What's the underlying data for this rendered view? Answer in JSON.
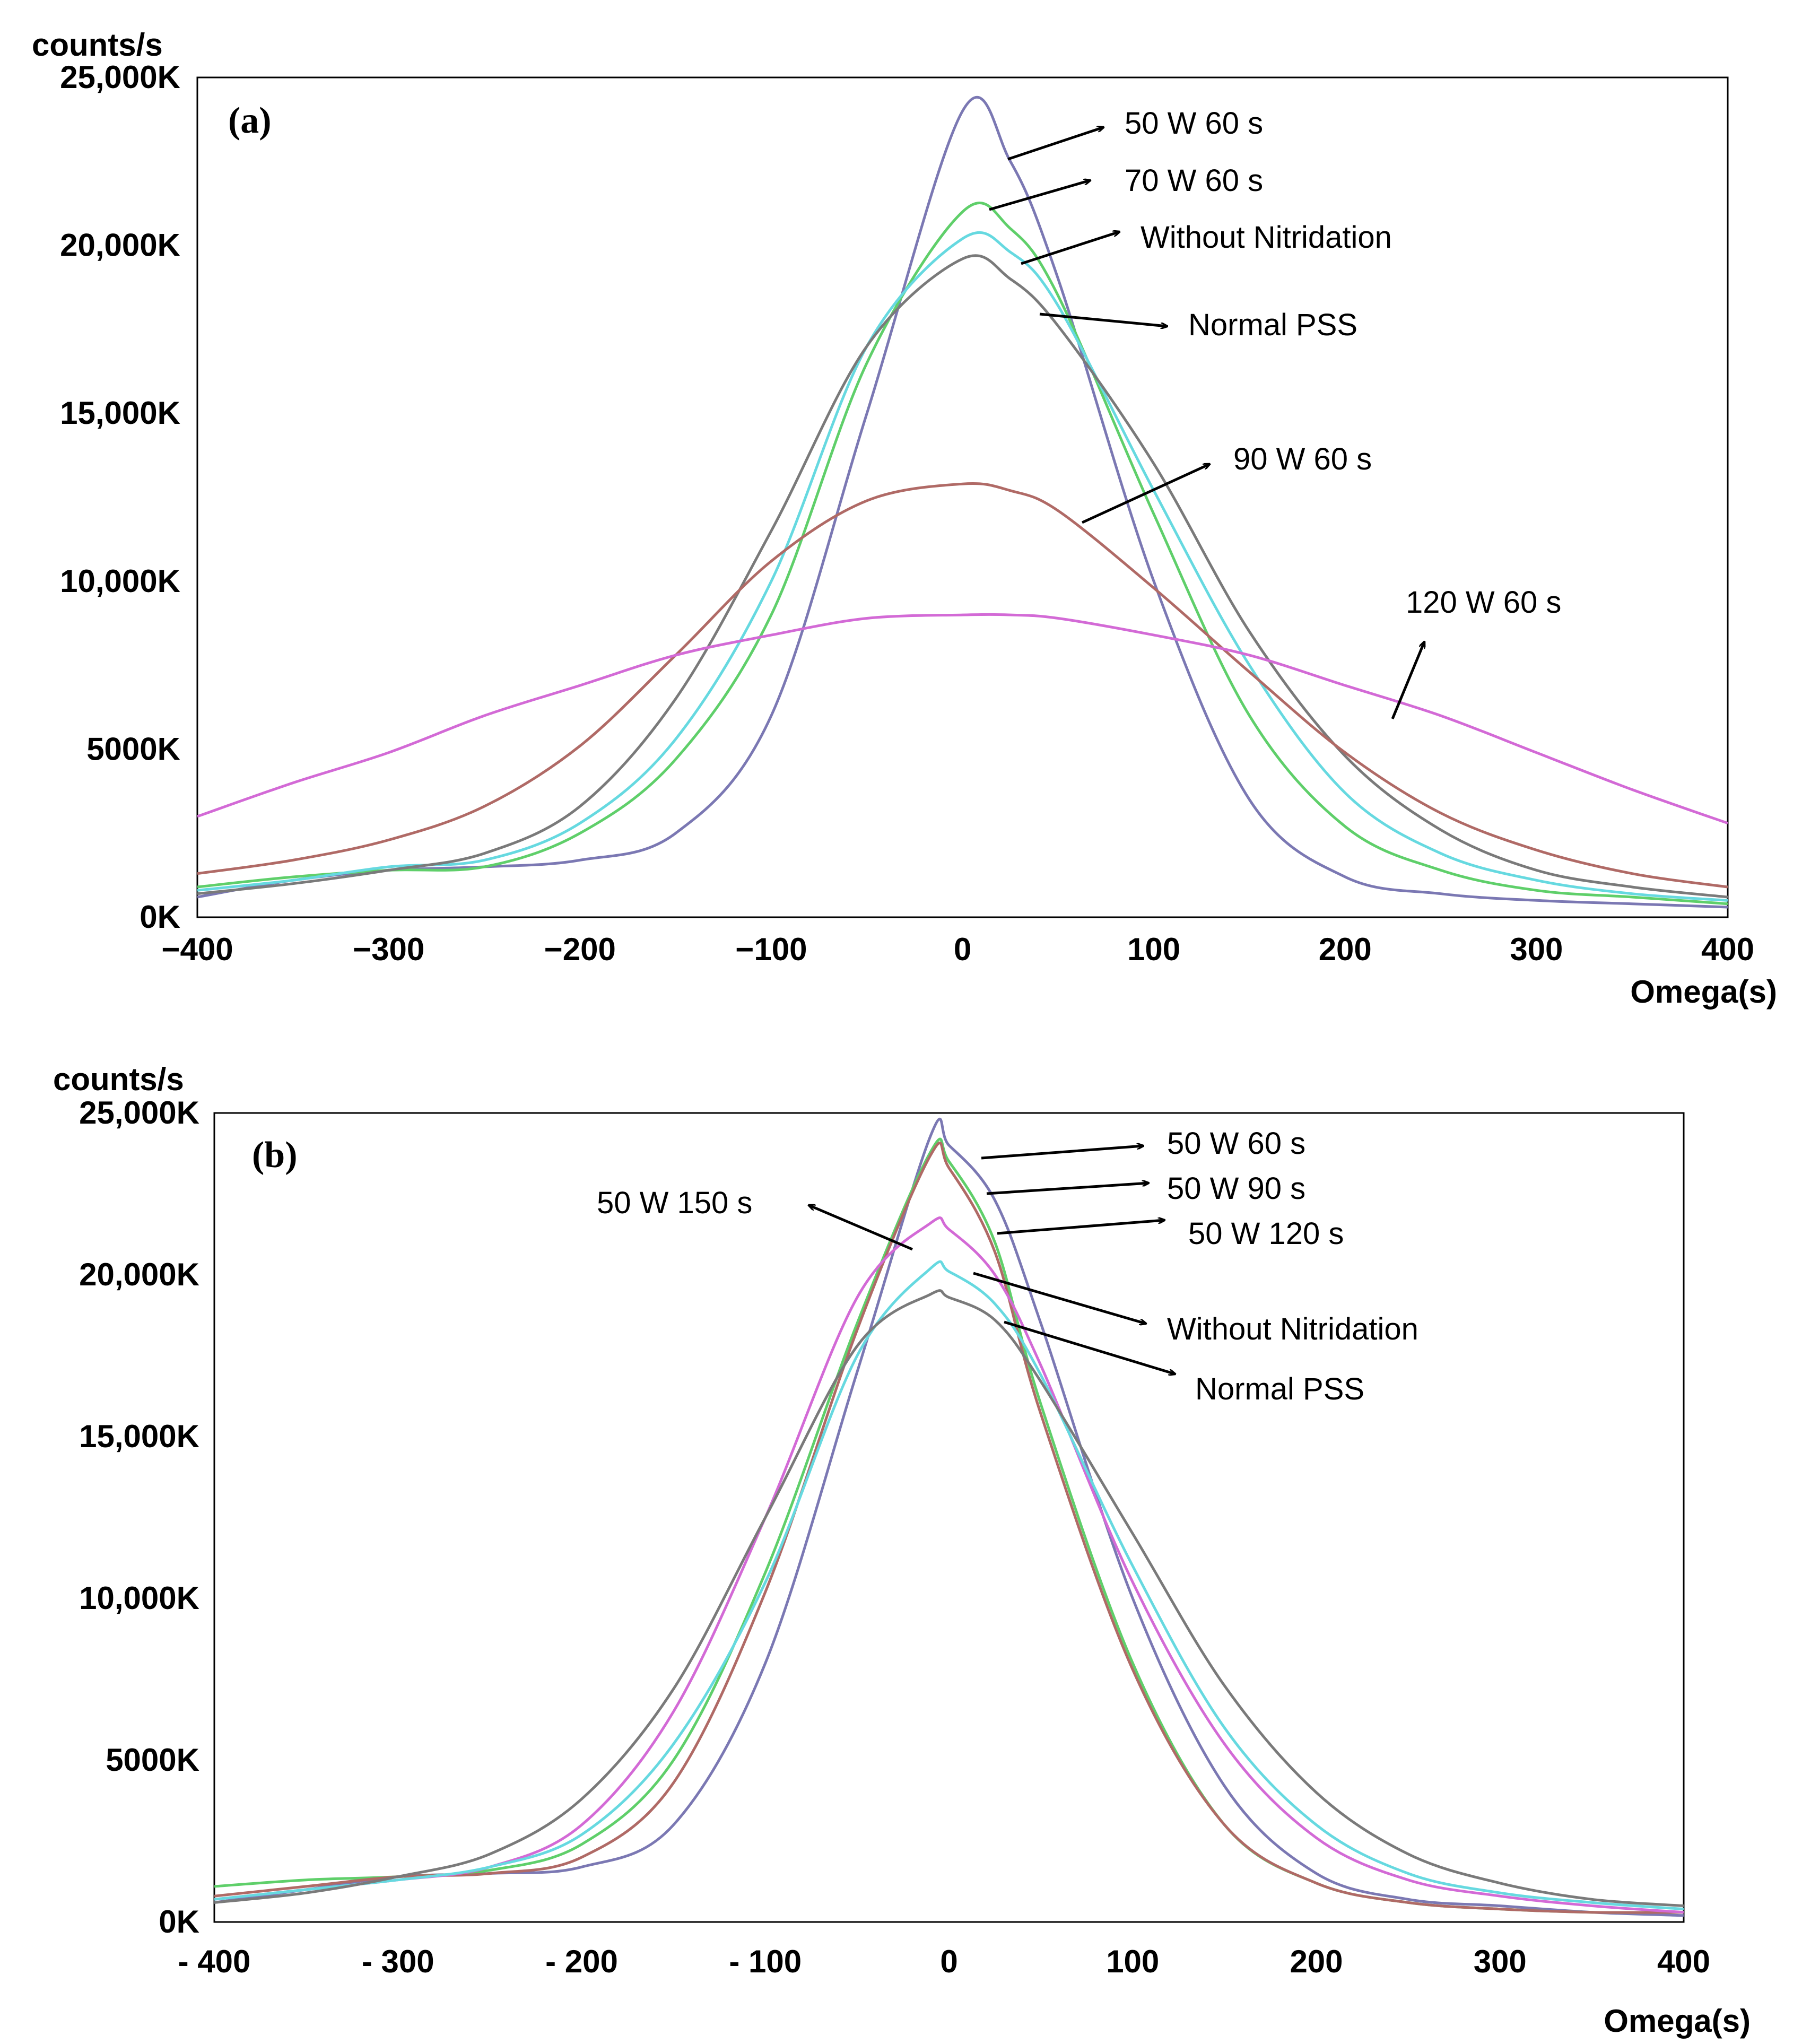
{
  "chart_data": [
    {
      "type": "line",
      "panel_label": "(a)",
      "ylabel": "counts/s",
      "xlabel": "Omega(s)",
      "xlim": [
        -400,
        400
      ],
      "ylim": [
        0,
        25000
      ],
      "x_ticks": [
        -400,
        -300,
        -200,
        -100,
        0,
        100,
        200,
        300,
        400
      ],
      "x_tick_labels": [
        "−400",
        "−300",
        "−200",
        "−100",
        "0",
        "100",
        "200",
        "300",
        "400"
      ],
      "y_ticks": [
        0,
        5000,
        10000,
        15000,
        20000,
        25000
      ],
      "y_tick_labels": [
        "0K",
        "5000K",
        "10,000K",
        "15,000K",
        "20,000K",
        "25,000K"
      ],
      "grid": false,
      "x": [
        -400,
        -350,
        -300,
        -250,
        -200,
        -150,
        -100,
        -50,
        0,
        25,
        50,
        100,
        150,
        200,
        250,
        300,
        350,
        400
      ],
      "series": [
        {
          "name": "50 W 60 s",
          "color": "#7b78b3",
          "values": [
            600,
            1100,
            1400,
            1500,
            1700,
            2500,
            6000,
            15000,
            24000,
            22500,
            19000,
            10000,
            3500,
            1200,
            700,
            500,
            400,
            300
          ]
        },
        {
          "name": "70 W 60 s",
          "color": "#5fcf6a",
          "values": [
            900,
            1200,
            1400,
            1500,
            2500,
            4700,
            9000,
            16500,
            21000,
            20500,
            18500,
            12000,
            6000,
            2700,
            1400,
            800,
            600,
            400
          ]
        },
        {
          "name": "Without Nitridation",
          "color": "#66d9e0",
          "values": [
            800,
            1100,
            1500,
            1700,
            2800,
            5300,
            10000,
            17000,
            20200,
            19800,
            18200,
            12700,
            7500,
            3700,
            1900,
            1100,
            700,
            500
          ]
        },
        {
          "name": "Normal PSS",
          "color": "#7a7a7a",
          "values": [
            700,
            1000,
            1400,
            1900,
            3300,
            6500,
            11500,
            17000,
            19600,
            19000,
            17600,
            13500,
            8500,
            4800,
            2600,
            1400,
            900,
            600
          ]
        },
        {
          "name": "90 W 60 s",
          "color": "#b06a66",
          "values": [
            1300,
            1700,
            2300,
            3300,
            5100,
            7800,
            10600,
            12400,
            12900,
            12700,
            12100,
            9800,
            7300,
            4900,
            3100,
            2000,
            1300,
            900
          ]
        },
        {
          "name": "120 W 60 s",
          "color": "#d36ad6",
          "values": [
            3000,
            4000,
            4900,
            6000,
            6900,
            7800,
            8400,
            8900,
            9000,
            9000,
            8900,
            8400,
            7800,
            6900,
            6000,
            4900,
            3800,
            2800
          ]
        }
      ],
      "annotations": [
        "50 W   60 s",
        "70 W   60 s",
        "Without Nitridation",
        "Normal PSS",
        "90 W   60 s",
        "120 W   60 s"
      ]
    },
    {
      "type": "line",
      "panel_label": "(b)",
      "ylabel": "counts/s",
      "xlabel": "Omega(s)",
      "xlim": [
        -400,
        400
      ],
      "ylim": [
        0,
        25000
      ],
      "x_ticks": [
        -400,
        -300,
        -200,
        -100,
        0,
        100,
        200,
        300,
        400
      ],
      "x_tick_labels": [
        "- 400",
        "- 300",
        "- 200",
        "- 100",
        "0",
        "100",
        "200",
        "300",
        "400"
      ],
      "y_ticks": [
        0,
        5000,
        10000,
        15000,
        20000,
        25000
      ],
      "y_tick_labels": [
        "0K",
        "5000K",
        "10,000K",
        "15,000K",
        "20,000K",
        "25,000K"
      ],
      "grid": false,
      "x": [
        -400,
        -350,
        -300,
        -250,
        -200,
        -150,
        -100,
        -50,
        -10,
        0,
        25,
        50,
        100,
        150,
        200,
        250,
        300,
        350,
        400
      ],
      "series": [
        {
          "name": "50 W 60 s",
          "color": "#7b78b3",
          "values": [
            600,
            1000,
            1400,
            1500,
            1700,
            3000,
            8000,
            17000,
            24300,
            24000,
            22300,
            18500,
            10000,
            4200,
            1500,
            700,
            500,
            300,
            200
          ]
        },
        {
          "name": "50 W 90 s",
          "color": "#5fcf6a",
          "values": [
            1100,
            1300,
            1400,
            1600,
            2400,
            5000,
            10800,
            18500,
            23800,
            23500,
            21000,
            16000,
            8000,
            3000,
            1200,
            600,
            400,
            300,
            300
          ]
        },
        {
          "name": "50 W 120 s",
          "color": "#b06a66",
          "values": [
            800,
            1100,
            1400,
            1500,
            2000,
            4300,
            10200,
            18300,
            23700,
            23300,
            20700,
            15700,
            7800,
            3000,
            1200,
            600,
            400,
            300,
            300
          ]
        },
        {
          "name": "50 W 150 s",
          "color": "#d36ad6",
          "values": [
            700,
            1000,
            1300,
            1700,
            3000,
            6500,
            12500,
            19300,
            21600,
            21400,
            20000,
            17200,
            10500,
            5500,
            2600,
            1300,
            800,
            500,
            300
          ]
        },
        {
          "name": "Without Nitridation",
          "color": "#66d9e0",
          "values": [
            700,
            1000,
            1300,
            1700,
            2700,
            5500,
            10500,
            17500,
            20200,
            20100,
            19100,
            16900,
            11000,
            6000,
            3000,
            1500,
            900,
            600,
            400
          ]
        },
        {
          "name": "Normal PSS",
          "color": "#7a7a7a",
          "values": [
            600,
            900,
            1400,
            2100,
            3800,
            7200,
            12500,
            17800,
            19400,
            19300,
            18600,
            16700,
            12000,
            7300,
            4000,
            2100,
            1200,
            700,
            500
          ]
        }
      ],
      "annotations": [
        "50 W   60 s",
        "50 W   90 s",
        "50 W   120 s",
        "50 W   150 s",
        "Without Nitridation",
        "Normal PSS"
      ]
    }
  ]
}
